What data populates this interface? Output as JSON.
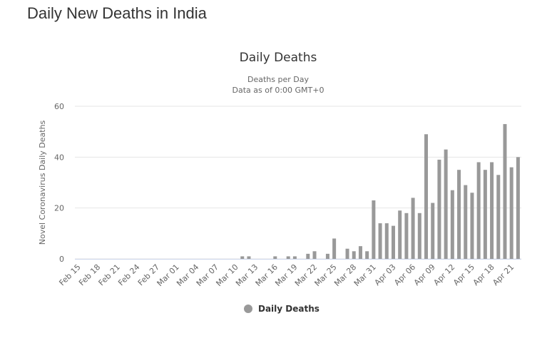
{
  "page_title": "Daily New Deaths in India",
  "chart_data": {
    "type": "bar",
    "title": "Daily Deaths",
    "subtitle": [
      "Deaths per Day",
      "Data as of 0:00 GMT+0"
    ],
    "y_label": "Novel Coronavirus Daily Deaths",
    "categories": [
      "Feb 15",
      null,
      null,
      "Feb 18",
      null,
      null,
      "Feb 21",
      null,
      null,
      "Feb 24",
      null,
      null,
      "Feb 27",
      null,
      null,
      "Mar 01",
      null,
      null,
      "Mar 04",
      null,
      null,
      "Mar 07",
      null,
      null,
      "Mar 10",
      null,
      null,
      "Mar 13",
      null,
      null,
      "Mar 16",
      null,
      null,
      "Mar 19",
      null,
      null,
      "Mar 22",
      null,
      null,
      "Mar 25",
      null,
      null,
      "Mar 28",
      null,
      null,
      "Mar 31",
      null,
      null,
      "Apr 03",
      null,
      null,
      "Apr 06",
      null,
      null,
      "Apr 09",
      null,
      null,
      "Apr 12",
      null,
      null,
      "Apr 15",
      null,
      null,
      "Apr 18",
      null,
      null,
      "Apr 21",
      null
    ],
    "series": [
      {
        "name": "Daily Deaths",
        "color": "#999999",
        "values": [
          0,
          0,
          0,
          0,
          0,
          0,
          0,
          0,
          0,
          0,
          0,
          0,
          0,
          0,
          0,
          0,
          0,
          0,
          0,
          0,
          0,
          0,
          0,
          0,
          0,
          1,
          1,
          0,
          0,
          0,
          1,
          0,
          1,
          1,
          0,
          2,
          3,
          0,
          2,
          8,
          0,
          4,
          3,
          5,
          3,
          23,
          14,
          14,
          13,
          19,
          18,
          24,
          18,
          49,
          22,
          39,
          43,
          27,
          35,
          29,
          26,
          38,
          35,
          38,
          33,
          53,
          36,
          40
        ]
      }
    ],
    "ylim": [
      0,
      60
    ],
    "yticks": [
      0,
      20,
      40,
      60
    ],
    "grid": true,
    "legend": "bottom"
  }
}
